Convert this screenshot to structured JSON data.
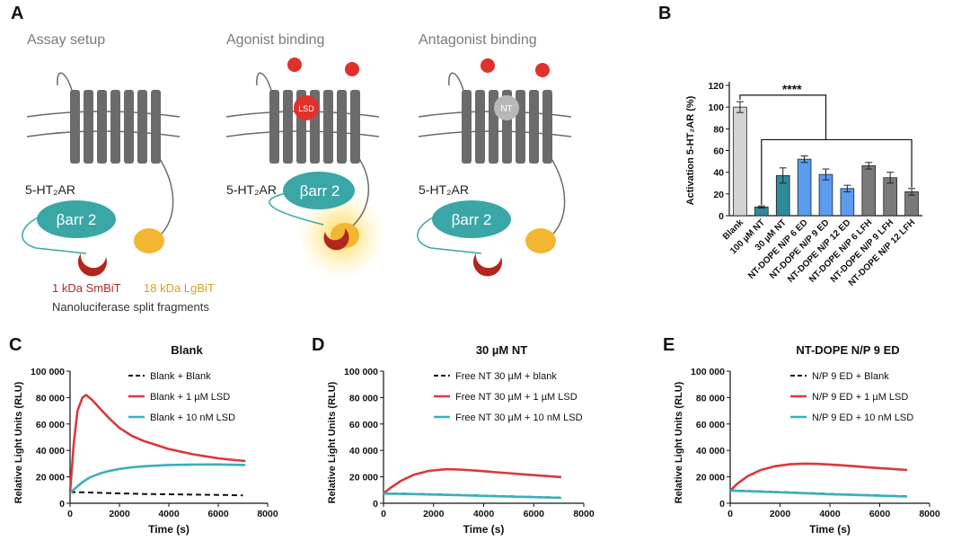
{
  "panel_letters": {
    "a": "A",
    "b": "B",
    "c": "C",
    "d": "D",
    "e": "E"
  },
  "panelA": {
    "titles": [
      "Assay setup",
      "Agonist binding",
      "Antagonist binding"
    ],
    "receptor_label": "5-HT₂AR",
    "barr_label": "βarr 2",
    "lsd_label": "LSD",
    "nt_label": "NT",
    "smbit_label": "1 kDa SmBiT",
    "lgbit_label": "18 kDa LgBiT",
    "split_label": "Nanoluciferase split fragments",
    "colors": {
      "receptor": "#6b6b6b",
      "membrane": "#6b6b6b",
      "barr": "#3aa6a6",
      "smbit": "#b3261e",
      "lgbit": "#f2b632",
      "lsd": "#e0312b",
      "nt": "#b8b8b8"
    }
  },
  "chart_data": [
    {
      "id": "B",
      "type": "bar",
      "title": "",
      "ylabel": "Activation 5-HT₂AR (%)",
      "ylim": [
        0,
        120
      ],
      "yticks": [
        0,
        20,
        40,
        60,
        80,
        100,
        120
      ],
      "categories": [
        "Blank",
        "100 µM NT",
        "30 µM NT",
        "NT-DOPE N/P 6 ED",
        "NT-DOPE N/P 9 ED",
        "NT-DOPE N/P 12 ED",
        "NT-DOPE N/P 6 LFH",
        "NT-DOPE N/P 9 LFH",
        "NT-DOPE N/P 12 LFH"
      ],
      "values": [
        100,
        8,
        37,
        52,
        38,
        25,
        46,
        35,
        22
      ],
      "errors": [
        5,
        1,
        7,
        3,
        5,
        3,
        3,
        5,
        3
      ],
      "colors": [
        "#d3d3d3",
        "#2f8a9a",
        "#2f8a9a",
        "#5b9cf0",
        "#5b9cf0",
        "#5b9cf0",
        "#7a7a7a",
        "#7a7a7a",
        "#7a7a7a"
      ],
      "significance": "****"
    },
    {
      "id": "C",
      "type": "line",
      "title": "Blank",
      "xlabel": "Time (s)",
      "ylabel": "Relative Light Units (RLU)",
      "xlim": [
        0,
        8000
      ],
      "ylim": [
        0,
        100000
      ],
      "xticks": [
        0,
        2000,
        4000,
        6000,
        8000
      ],
      "yticks": [
        0,
        20000,
        40000,
        60000,
        80000,
        100000
      ],
      "ytick_labels": [
        "0",
        "20 000",
        "40 000",
        "60 000",
        "80 000",
        "100 000"
      ],
      "legend_position": "top-right",
      "series": [
        {
          "name": "Blank + Blank",
          "color": "#111111",
          "style": "dashed",
          "x": [
            0,
            1000,
            2000,
            3000,
            4000,
            5000,
            6000,
            7000
          ],
          "y": [
            8500,
            8000,
            7500,
            7000,
            6800,
            6500,
            6300,
            6000
          ]
        },
        {
          "name": "Blank + 1 µM LSD",
          "color": "#d83a3a",
          "style": "solid",
          "x": [
            0,
            150,
            300,
            500,
            650,
            900,
            1200,
            1600,
            2000,
            2500,
            3000,
            3500,
            4000,
            4500,
            5000,
            5500,
            6000,
            6500,
            7100
          ],
          "y": [
            8000,
            45000,
            70000,
            80000,
            82000,
            78000,
            72000,
            64000,
            57000,
            51000,
            47000,
            44000,
            41000,
            39000,
            37000,
            35500,
            34000,
            33000,
            32000
          ]
        },
        {
          "name": "Blank + 10 nM LSD",
          "color": "#3ab0b8",
          "style": "solid",
          "x": [
            0,
            250,
            500,
            800,
            1200,
            1600,
            2000,
            2500,
            3000,
            4000,
            5000,
            6000,
            7100
          ],
          "y": [
            8000,
            12000,
            16000,
            19500,
            22500,
            24500,
            26000,
            27200,
            28000,
            29000,
            29300,
            29400,
            29000
          ]
        }
      ]
    },
    {
      "id": "D",
      "type": "line",
      "title": "30 µM NT",
      "xlabel": "Time (s)",
      "ylabel": "Relative Light Units (RLU)",
      "xlim": [
        0,
        8000
      ],
      "ylim": [
        0,
        100000
      ],
      "xticks": [
        0,
        2000,
        4000,
        6000,
        8000
      ],
      "yticks": [
        0,
        20000,
        40000,
        60000,
        80000,
        100000
      ],
      "ytick_labels": [
        "0",
        "20 000",
        "40 000",
        "60 000",
        "80 000",
        "100 000"
      ],
      "legend_position": "top-right",
      "series": [
        {
          "name": "Free NT 30 µM + blank",
          "color": "#111111",
          "style": "dashed",
          "x": [
            0,
            1000,
            2000,
            3000,
            4000,
            5000,
            6000,
            7100
          ],
          "y": [
            7500,
            7200,
            6800,
            6300,
            5800,
            5300,
            4800,
            4300
          ]
        },
        {
          "name": "Free NT 30 µM + 1 µM LSD",
          "color": "#d83a3a",
          "style": "solid",
          "x": [
            0,
            300,
            700,
            1200,
            1800,
            2500,
            3000,
            3500,
            4000,
            4500,
            5000,
            5500,
            6000,
            6500,
            7100
          ],
          "y": [
            7500,
            12000,
            17000,
            21500,
            24500,
            25800,
            25500,
            25000,
            24300,
            23500,
            22800,
            22000,
            21300,
            20600,
            19800
          ]
        },
        {
          "name": "Free NT 30 µM + 10 nM LSD",
          "color": "#3ab0b8",
          "style": "solid",
          "x": [
            0,
            1000,
            2000,
            3000,
            4000,
            5000,
            6000,
            7100
          ],
          "y": [
            7300,
            7000,
            6600,
            6100,
            5600,
            5100,
            4600,
            4100
          ]
        }
      ]
    },
    {
      "id": "E",
      "type": "line",
      "title": "NT-DOPE N/P 9 ED",
      "xlabel": "Time (s)",
      "ylabel": "Relative Light Units (RLU)",
      "xlim": [
        0,
        8000
      ],
      "ylim": [
        0,
        100000
      ],
      "xticks": [
        0,
        2000,
        4000,
        6000,
        8000
      ],
      "yticks": [
        0,
        20000,
        40000,
        60000,
        80000,
        100000
      ],
      "ytick_labels": [
        "0",
        "20 000",
        "40 000",
        "60 000",
        "80 000",
        "100 000"
      ],
      "legend_position": "top-right",
      "series": [
        {
          "name": "N/P 9 ED + Blank",
          "color": "#111111",
          "style": "dashed",
          "x": [
            0,
            1000,
            2000,
            3000,
            4000,
            5000,
            6000,
            7100
          ],
          "y": [
            9800,
            9200,
            8500,
            7800,
            7100,
            6500,
            5900,
            5300
          ]
        },
        {
          "name": "N/P 9 ED + 1 µM LSD",
          "color": "#d83a3a",
          "style": "solid",
          "x": [
            0,
            300,
            700,
            1200,
            1800,
            2400,
            3000,
            3500,
            4000,
            4500,
            5000,
            5500,
            6000,
            6500,
            7100
          ],
          "y": [
            9500,
            15000,
            20500,
            25000,
            28000,
            29500,
            30000,
            29800,
            29300,
            28700,
            28000,
            27300,
            26600,
            26000,
            25200
          ]
        },
        {
          "name": "N/P 9 ED + 10 nM LSD",
          "color": "#3ab0b8",
          "style": "solid",
          "x": [
            0,
            1000,
            2000,
            3000,
            4000,
            5000,
            6000,
            7100
          ],
          "y": [
            9500,
            9000,
            8300,
            7600,
            6900,
            6300,
            5700,
            5100
          ]
        }
      ]
    }
  ]
}
